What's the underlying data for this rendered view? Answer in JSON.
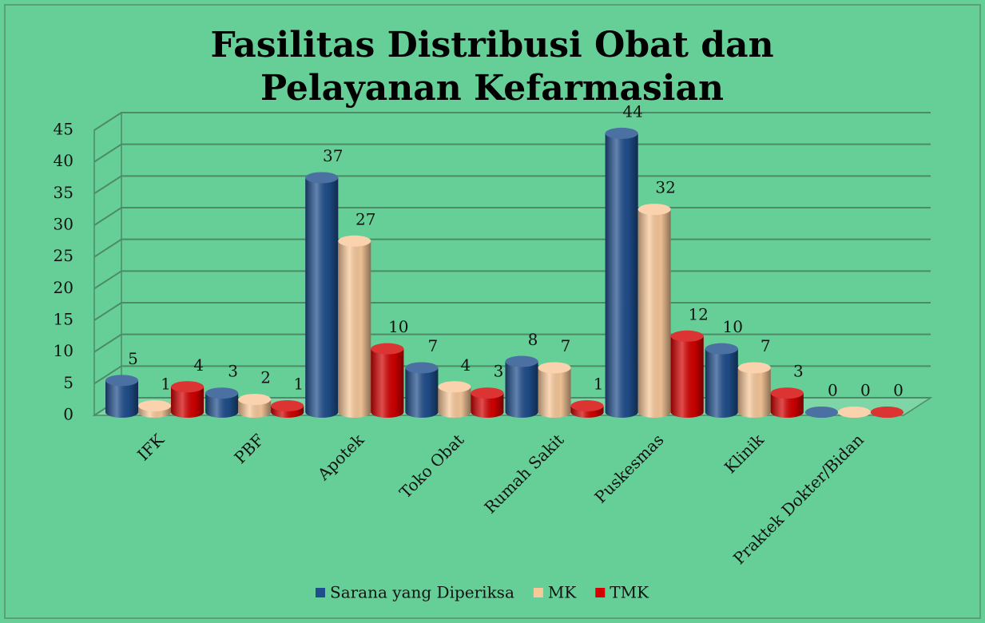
{
  "chart_data": {
    "type": "bar",
    "title": "Fasilitas Distribusi Obat dan Pelayanan Kefarmasian",
    "categories": [
      "IFK",
      "PBF",
      "Apotek",
      "Toko Obat",
      "Rumah Sakit",
      "Puskesmas",
      "Klinik",
      "Praktek Dokter/Bidan"
    ],
    "series": [
      {
        "name": "Sarana yang Diperiksa",
        "color": "#1f4e8c",
        "values": [
          5,
          3,
          37,
          7,
          8,
          44,
          10,
          0
        ]
      },
      {
        "name": "MK",
        "color": "#f9c99a",
        "values": [
          1,
          2,
          27,
          4,
          7,
          32,
          7,
          0
        ]
      },
      {
        "name": "TMK",
        "color": "#d40000",
        "values": [
          4,
          1,
          10,
          3,
          1,
          12,
          3,
          0
        ]
      }
    ],
    "ylim": [
      0,
      45
    ],
    "yticks": [
      0,
      5,
      10,
      15,
      20,
      25,
      30,
      35,
      40,
      45
    ],
    "grid": true,
    "legend": "bottom"
  }
}
